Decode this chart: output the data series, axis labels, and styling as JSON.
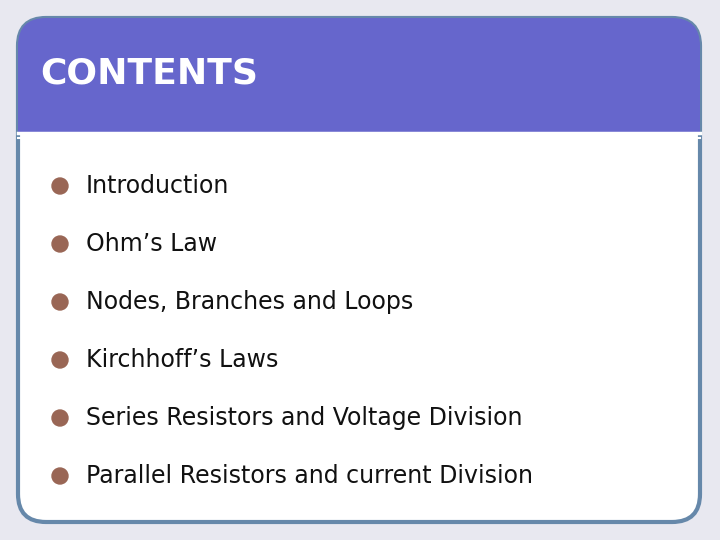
{
  "title": "CONTENTS",
  "title_color": "#ffffff",
  "title_bg_color": "#6666cc",
  "title_fontsize": 26,
  "bg_color": "#f0f0f8",
  "card_bg_color": "#ffffff",
  "border_color": "#6688aa",
  "bullet_color": "#996655",
  "text_color": "#111111",
  "items": [
    "Introduction",
    "Ohm’s Law",
    "Nodes, Branches and Loops",
    "Kirchhoff’s Laws",
    "Series Resistors and Voltage Division",
    "Parallel Resistors and current Division"
  ],
  "item_fontsize": 17,
  "separator_color": "#ffffff",
  "outer_bg": "#e8e8f0"
}
